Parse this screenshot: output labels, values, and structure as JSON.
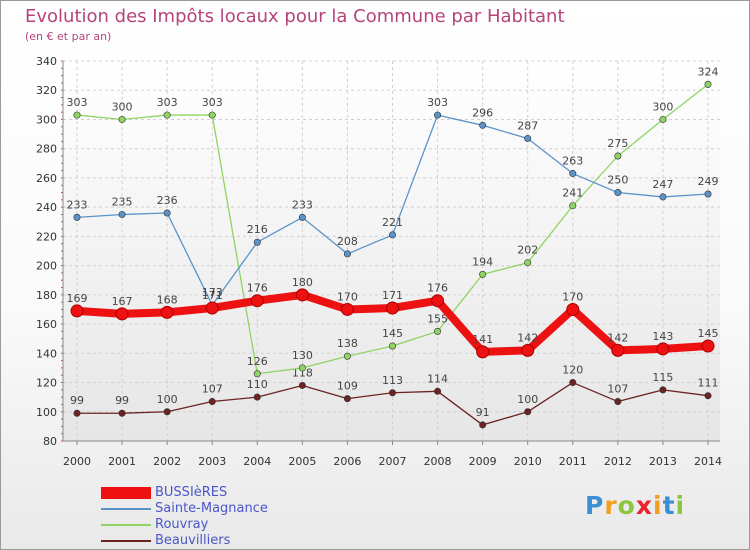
{
  "chart_data": {
    "type": "line",
    "title": "Evolution des Impôts locaux pour la Commune par Habitant",
    "subtitle": "(en € et par an)",
    "xlabel": "",
    "ylabel": "",
    "x": [
      "2000",
      "2001",
      "2002",
      "2003",
      "2004",
      "2005",
      "2006",
      "2007",
      "2008",
      "2009",
      "2010",
      "2011",
      "2012",
      "2013",
      "2014"
    ],
    "ylim": [
      80,
      340
    ],
    "yticks": [
      "80",
      "100",
      "120",
      "140",
      "160",
      "180",
      "200",
      "220",
      "240",
      "260",
      "280",
      "300",
      "320",
      "340"
    ],
    "grid": true,
    "legend_position": "bottom-left",
    "series": [
      {
        "name": "Beauvilliers",
        "color": "#6b2323",
        "values": [
          99,
          99,
          100,
          107,
          110,
          118,
          109,
          113,
          114,
          91,
          100,
          120,
          107,
          115,
          111
        ]
      },
      {
        "name": "Rouvray",
        "color": "#8ed464",
        "values": [
          303,
          300,
          303,
          303,
          126,
          130,
          138,
          145,
          155,
          194,
          202,
          241,
          275,
          300,
          324
        ]
      },
      {
        "name": "Sainte-Magnance",
        "color": "#5b93c9",
        "values": [
          233,
          235,
          236,
          173,
          216,
          233,
          208,
          221,
          303,
          296,
          287,
          263,
          250,
          247,
          249
        ]
      },
      {
        "name": "BUSSIèRES",
        "color": "#ee1111",
        "values": [
          169,
          167,
          168,
          171,
          176,
          180,
          170,
          171,
          176,
          141,
          142,
          170,
          142,
          143,
          145
        ]
      }
    ]
  },
  "legend": {
    "items": [
      {
        "label": "BUSSIèRES",
        "color": "#ee1111"
      },
      {
        "label": "Sainte-Magnance",
        "color": "#5b93c9"
      },
      {
        "label": "Rouvray",
        "color": "#8ed464"
      },
      {
        "label": "Beauvilliers",
        "color": "#6b2323"
      }
    ]
  },
  "logo": {
    "letters": [
      {
        "char": "P",
        "color": "#3b8fd4"
      },
      {
        "char": "r",
        "color": "#f0a020"
      },
      {
        "char": "o",
        "color": "#8cc63f"
      },
      {
        "char": "x",
        "color": "#e8252b"
      },
      {
        "char": "i",
        "color": "#f0a020"
      },
      {
        "char": "t",
        "color": "#3b8fd4"
      },
      {
        "char": "i",
        "color": "#8cc63f"
      }
    ]
  }
}
